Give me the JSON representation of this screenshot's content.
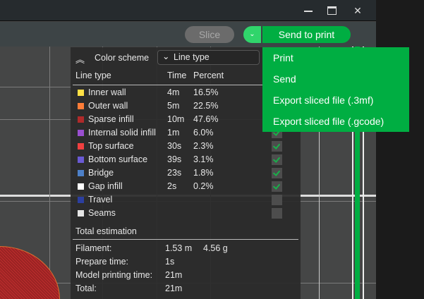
{
  "window": {
    "minimize_icon": "minimize-icon",
    "maximize_icon": "maximize-icon",
    "close_icon": "close-icon"
  },
  "toolbar": {
    "slice_label": "Slice",
    "send_label": "Send to print",
    "dropdown_icon": "chevron-down-icon",
    "accent": "#00ae42"
  },
  "send_menu": {
    "items": [
      "Print",
      "Send",
      "Export sliced file (.3mf)",
      "Export sliced file (.gcode)"
    ]
  },
  "legend": {
    "color_scheme_label": "Color scheme",
    "color_scheme_value": "Line type",
    "headers": {
      "name": "Line type",
      "time": "Time",
      "percent": "Percent"
    },
    "rows": [
      {
        "name": "Inner wall",
        "time": "4m",
        "percent": "16.5%",
        "color": "#ffe045",
        "visible": true
      },
      {
        "name": "Outer wall",
        "time": "5m",
        "percent": "22.5%",
        "color": "#ff7d38",
        "visible": true
      },
      {
        "name": "Sparse infill",
        "time": "10m",
        "percent": "47.6%",
        "color": "#b02a2a",
        "visible": true
      },
      {
        "name": "Internal solid infill",
        "time": "1m",
        "percent": "6.0%",
        "color": "#9a4fd0",
        "visible": true
      },
      {
        "name": "Top surface",
        "time": "30s",
        "percent": "2.3%",
        "color": "#f04040",
        "visible": true
      },
      {
        "name": "Bottom surface",
        "time": "39s",
        "percent": "3.1%",
        "color": "#6a5ad4",
        "visible": true
      },
      {
        "name": "Bridge",
        "time": "23s",
        "percent": "1.8%",
        "color": "#4d80c8",
        "visible": true
      },
      {
        "name": "Gap infill",
        "time": "2s",
        "percent": "0.2%",
        "color": "#ffffff",
        "visible": true
      },
      {
        "name": "Travel",
        "time": "",
        "percent": "",
        "color": "#2c3fa0",
        "visible": false
      },
      {
        "name": "Seams",
        "time": "",
        "percent": "",
        "color": "#e6e6e6",
        "visible": false
      }
    ]
  },
  "total": {
    "title": "Total estimation",
    "filament_label": "Filament:",
    "filament_length": "1.53 m",
    "filament_weight": "4.56 g",
    "prepare_label": "Prepare time:",
    "prepare_value": "1s",
    "model_label": "Model printing time:",
    "model_value": "21m",
    "total_label": "Total:",
    "total_value": "21m"
  }
}
